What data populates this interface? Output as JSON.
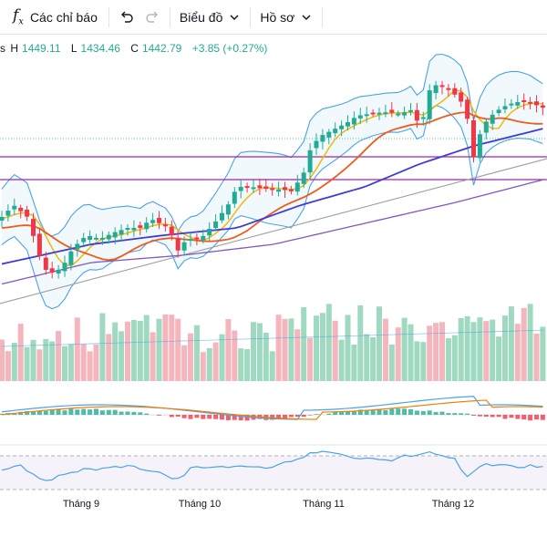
{
  "toolbar": {
    "fx_label": "Các chỉ báo",
    "chart_menu_label": "Biểu đồ",
    "profile_menu_label": "Hồ sơ"
  },
  "ohlc": {
    "prefix": "s",
    "high_label": "H",
    "high": "1449.11",
    "low_label": "L",
    "low": "1434.46",
    "close_label": "C",
    "close": "1442.79",
    "change": "+3.85 (+0.27%)"
  },
  "colors": {
    "up": "#22ab94",
    "down": "#f23645",
    "volume_up": "#9fd9c0",
    "volume_down": "#f5b5bd",
    "ema_fast": "#f0b90b",
    "ema_mid": "#f05a1a",
    "ema_slow": "#3d3dd6",
    "ema_long": "#7e57c2",
    "bollinger": "#4aa3e8",
    "trendline": "#9e9e9e",
    "horizontal_line": "#9c27b0",
    "rsi": "#4aa3e8",
    "macd_line": "#4aa3e8",
    "signal_line": "#f57c00"
  },
  "chart_data": {
    "type": "candlestick",
    "x_labels": [
      "Tháng 9",
      "Tháng 10",
      "Tháng 11",
      "Tháng 12"
    ],
    "last_candle": {
      "high": 1449.11,
      "low": 1434.46,
      "close": 1442.79,
      "change": 3.85,
      "change_pct": 0.27
    },
    "horizontal_levels": [
      "upper",
      "lower"
    ],
    "indicators": [
      "EMA",
      "Bollinger Bands",
      "Volume",
      "MACD",
      "RSI"
    ]
  }
}
